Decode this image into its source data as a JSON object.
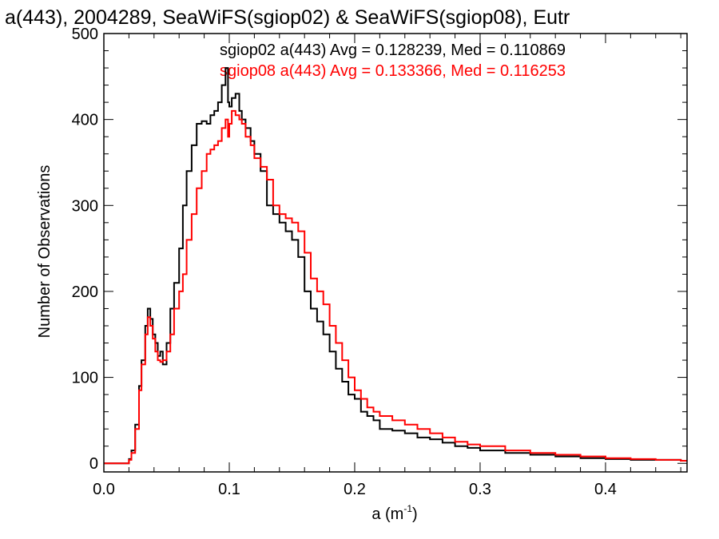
{
  "chart_data": {
    "type": "line",
    "title": "a(443), 2004289, SeaWiFS(sgiop02) & SeaWiFS(sgiop08), Eutr",
    "xlabel": "a (m",
    "xlabel_sup": "-1",
    "xlabel_close": ")",
    "ylabel": "Number of Observations",
    "xlim": [
      0.0,
      0.465
    ],
    "ylim": [
      -10,
      500
    ],
    "x_ticks": [
      0.0,
      0.1,
      0.2,
      0.3,
      0.4
    ],
    "x_tick_labels": [
      "0.0",
      "0.1",
      "0.2",
      "0.3",
      "0.4"
    ],
    "y_ticks": [
      0,
      100,
      200,
      300,
      400,
      500
    ],
    "y_tick_labels": [
      "0",
      "100",
      "200",
      "300",
      "400",
      "500"
    ],
    "step": "histogram",
    "legend_position": "top-right",
    "series": [
      {
        "name": "sgiop02",
        "annotation": "sgiop02 a(443) Avg = 0.128239, Med = 0.110869",
        "color": "#000000",
        "x": [
          0.0,
          0.01,
          0.015,
          0.02,
          0.022,
          0.025,
          0.028,
          0.03,
          0.033,
          0.035,
          0.037,
          0.039,
          0.041,
          0.043,
          0.045,
          0.047,
          0.05,
          0.053,
          0.056,
          0.06,
          0.063,
          0.066,
          0.07,
          0.074,
          0.078,
          0.082,
          0.085,
          0.088,
          0.091,
          0.094,
          0.097,
          0.099,
          0.1,
          0.102,
          0.105,
          0.108,
          0.11,
          0.113,
          0.117,
          0.12,
          0.125,
          0.13,
          0.135,
          0.14,
          0.145,
          0.15,
          0.155,
          0.16,
          0.165,
          0.17,
          0.175,
          0.18,
          0.185,
          0.19,
          0.195,
          0.2,
          0.205,
          0.21,
          0.215,
          0.22,
          0.23,
          0.24,
          0.25,
          0.26,
          0.27,
          0.28,
          0.29,
          0.3,
          0.32,
          0.34,
          0.36,
          0.38,
          0.4,
          0.42,
          0.44,
          0.46,
          0.465
        ],
        "y": [
          0,
          0,
          0,
          5,
          15,
          45,
          90,
          120,
          160,
          180,
          168,
          150,
          140,
          125,
          130,
          115,
          140,
          180,
          210,
          250,
          300,
          340,
          370,
          395,
          398,
          395,
          405,
          410,
          420,
          440,
          460,
          420,
          415,
          425,
          430,
          410,
          400,
          390,
          375,
          360,
          340,
          300,
          290,
          280,
          270,
          260,
          240,
          200,
          180,
          165,
          150,
          130,
          110,
          95,
          80,
          75,
          60,
          55,
          50,
          40,
          38,
          35,
          30,
          28,
          24,
          20,
          18,
          15,
          12,
          10,
          8,
          6,
          5,
          4,
          4,
          3,
          3
        ]
      },
      {
        "name": "sgiop08",
        "annotation": "sgiop08 a(443) Avg = 0.133366, Med = 0.116253",
        "color": "#ff0000",
        "x": [
          0.0,
          0.01,
          0.015,
          0.02,
          0.022,
          0.025,
          0.028,
          0.03,
          0.033,
          0.035,
          0.037,
          0.039,
          0.041,
          0.043,
          0.045,
          0.047,
          0.05,
          0.053,
          0.056,
          0.06,
          0.063,
          0.066,
          0.07,
          0.074,
          0.078,
          0.082,
          0.085,
          0.088,
          0.091,
          0.094,
          0.097,
          0.099,
          0.1,
          0.102,
          0.105,
          0.108,
          0.11,
          0.113,
          0.117,
          0.12,
          0.125,
          0.13,
          0.135,
          0.14,
          0.145,
          0.15,
          0.155,
          0.16,
          0.165,
          0.17,
          0.175,
          0.18,
          0.185,
          0.19,
          0.195,
          0.2,
          0.205,
          0.21,
          0.215,
          0.22,
          0.23,
          0.24,
          0.25,
          0.26,
          0.27,
          0.28,
          0.29,
          0.3,
          0.32,
          0.34,
          0.36,
          0.38,
          0.4,
          0.42,
          0.44,
          0.46,
          0.465
        ],
        "y": [
          0,
          0,
          0,
          4,
          12,
          40,
          85,
          115,
          150,
          170,
          160,
          145,
          130,
          120,
          118,
          120,
          130,
          150,
          180,
          200,
          220,
          260,
          290,
          320,
          340,
          360,
          365,
          370,
          375,
          390,
          400,
          380,
          395,
          410,
          405,
          400,
          395,
          380,
          370,
          355,
          345,
          330,
          300,
          290,
          285,
          280,
          270,
          245,
          215,
          200,
          185,
          160,
          140,
          120,
          100,
          85,
          75,
          65,
          60,
          55,
          50,
          45,
          40,
          35,
          30,
          25,
          22,
          20,
          15,
          12,
          10,
          8,
          6,
          5,
          4,
          3,
          3
        ]
      }
    ]
  }
}
